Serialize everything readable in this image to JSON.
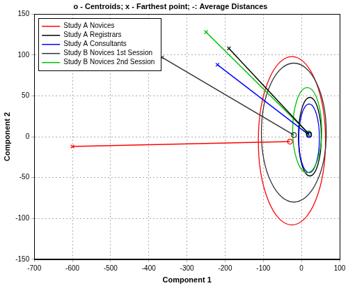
{
  "chart_data": {
    "type": "scatter",
    "title": "o - Centroids; x - Farthest point; -: Average Distances",
    "x_label": "Component 1",
    "y_label": "Component 2",
    "xlim": [
      -700,
      100
    ],
    "xticks": [
      -700,
      -600,
      -500,
      -400,
      -300,
      -200,
      -100,
      0,
      100
    ],
    "ylim": [
      -150,
      150
    ],
    "yticks": [
      -150,
      -100,
      -50,
      0,
      50,
      100,
      150
    ],
    "grid": true,
    "legend": "upper left",
    "series": [
      {
        "name": "Study A Novices",
        "color": "#ff0000",
        "centroid": [
          -30,
          -6
        ],
        "farthest": [
          -600,
          -12
        ],
        "ellipse": {
          "center": [
            -25,
            -5
          ],
          "radii": [
            88,
            103
          ]
        }
      },
      {
        "name": "Study A Registrars",
        "color": "#000000",
        "centroid": [
          20,
          3
        ],
        "farthest": [
          -190,
          108
        ],
        "ellipse": {
          "center": [
            22,
            0
          ],
          "radii": [
            30,
            48
          ]
        }
      },
      {
        "name": "Study A Consultants",
        "color": "#0000ff",
        "centroid": [
          20,
          2
        ],
        "farthest": [
          -220,
          88
        ],
        "ellipse": {
          "center": [
            20,
            -2
          ],
          "radii": [
            27,
            42
          ]
        }
      },
      {
        "name": "Study B Novices 1st Session",
        "color": "#333333",
        "centroid": [
          -20,
          2
        ],
        "farthest": [
          -365,
          97
        ],
        "ellipse": {
          "center": [
            -20,
            5
          ],
          "radii": [
            85,
            85
          ]
        }
      },
      {
        "name": "Study B Novices 2nd Session",
        "color": "#00c000",
        "centroid": [
          18,
          4
        ],
        "farthest": [
          -250,
          128
        ],
        "ellipse": {
          "center": [
            15,
            8
          ],
          "radii": [
            38,
            52
          ]
        }
      }
    ]
  }
}
